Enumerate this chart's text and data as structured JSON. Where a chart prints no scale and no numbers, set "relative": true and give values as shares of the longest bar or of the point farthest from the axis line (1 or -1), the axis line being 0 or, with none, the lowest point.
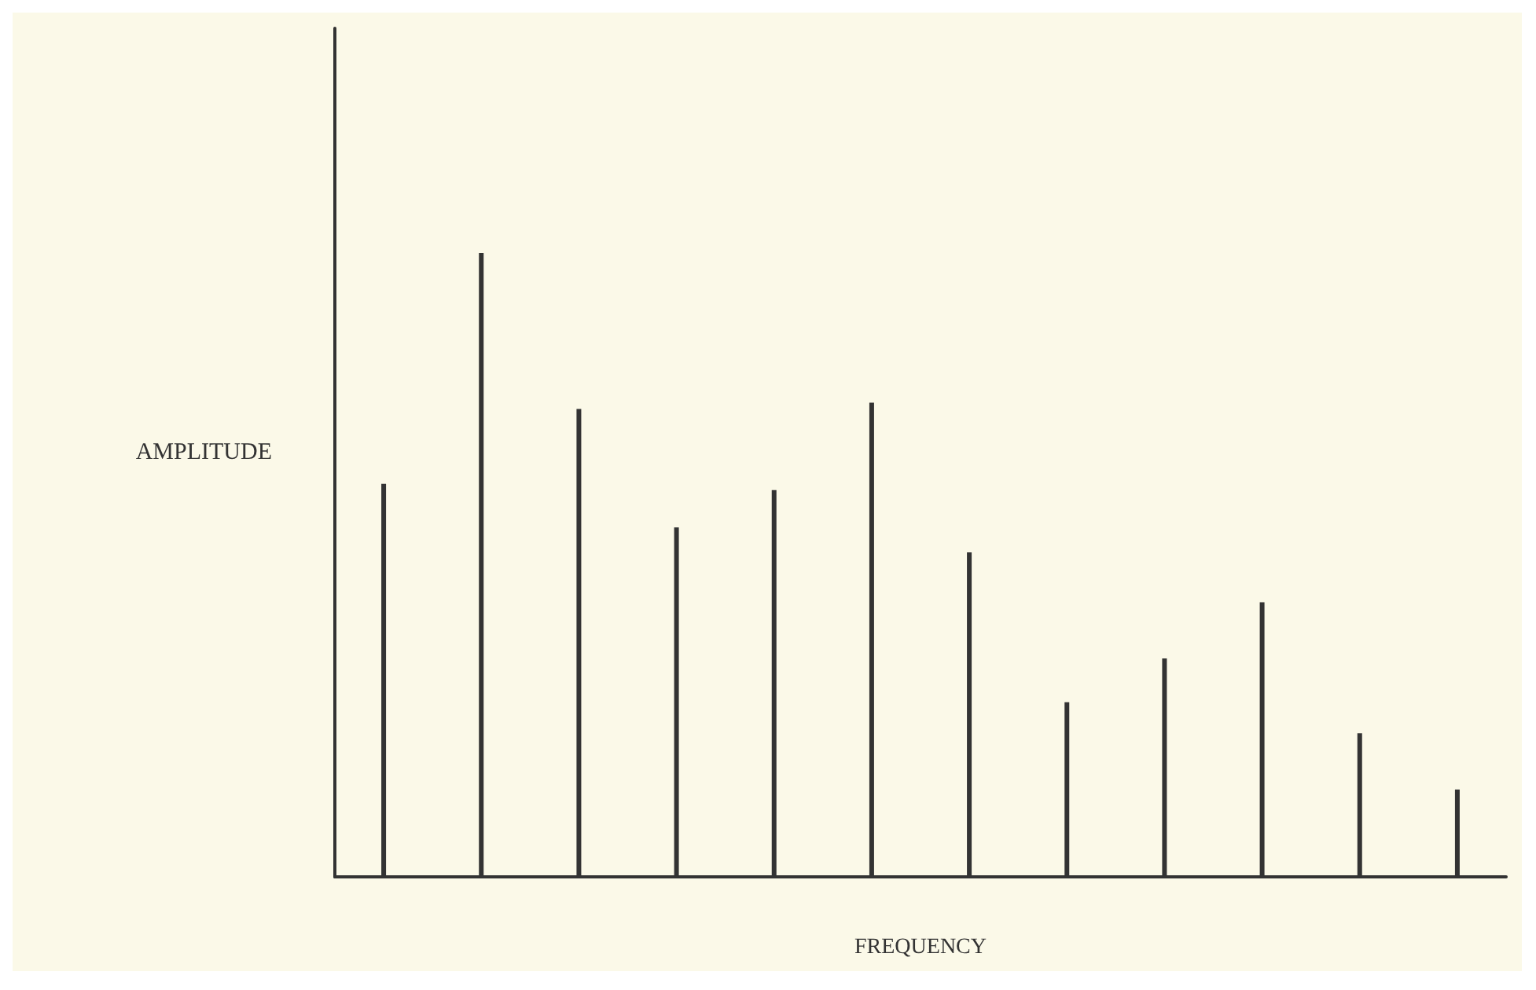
{
  "chart_data": {
    "type": "bar",
    "relative": true,
    "xlabel": "FREQUENCY",
    "ylabel": "AMPLITUDE",
    "color": "#333333",
    "grid": false,
    "categories": [
      null,
      null,
      null,
      null,
      null,
      null,
      null,
      null,
      null,
      null,
      null,
      null
    ],
    "values": [
      0.63,
      1,
      0.75,
      0.56,
      0.62,
      0.76,
      0.52,
      0.28,
      0.35,
      0.44,
      0.23,
      0.14
    ]
  }
}
